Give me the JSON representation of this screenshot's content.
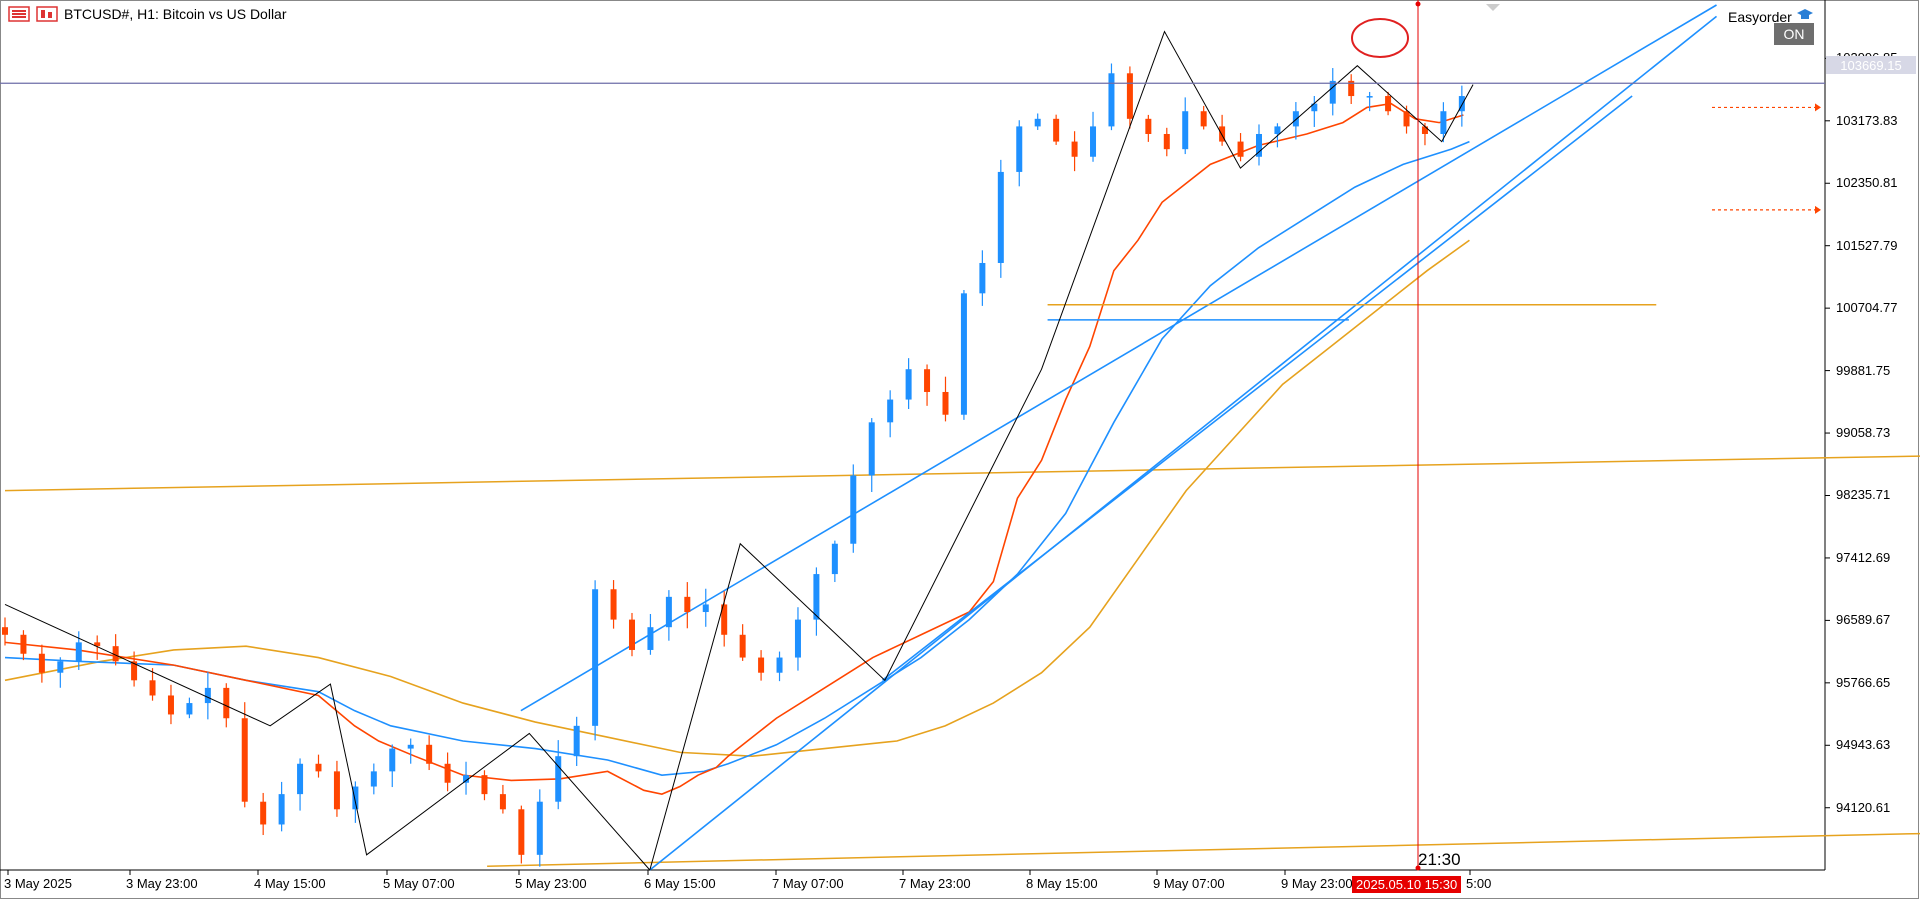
{
  "header": {
    "title": "BTCUSD#, H1:  Bitcoin vs US Dollar",
    "panel_label": "Easyorder",
    "toggle_label": "ON"
  },
  "colors": {
    "bull": "#1e90ff",
    "bear": "#ff4500",
    "ema_fast": "#ff4500",
    "ema_mid": "#1e90ff",
    "ema_slow": "#e6a21e",
    "channel": "#1e90ff",
    "zigzag": "#000000",
    "price_line": "#6e6ea8",
    "time_line": "#e60000",
    "stoploss": "#ff4500"
  },
  "chart_data": {
    "type": "candlestick",
    "symbol": "BTCUSD#",
    "timeframe": "H1",
    "title": "BTCUSD#, H1:  Bitcoin vs US Dollar",
    "current_price": 103669.15,
    "current_price_label": "103669.15",
    "ylim": [
      93300,
      104700
    ],
    "y_ticks": [
      "103996.85",
      "103173.83",
      "102350.81",
      "101527.79",
      "100704.77",
      "99881.75",
      "99058.73",
      "98235.71",
      "97412.69",
      "96589.67",
      "95766.65",
      "94943.63",
      "94120.61"
    ],
    "x_ticks": [
      "3 May 2025",
      "3 May 23:00",
      "4 May 15:00",
      "5 May 07:00",
      "5 May 23:00",
      "6 May 15:00",
      "7 May 07:00",
      "7 May 23:00",
      "8 May 15:00",
      "9 May 07:00",
      "9 May 23:00",
      "5:00"
    ],
    "crosshair_time": "2025.05.10 15:30",
    "crosshair_minute": "21:30",
    "closes_anchor": [
      96400,
      96150,
      95900,
      96050,
      96300,
      96250,
      96050,
      95800,
      95600,
      95350,
      95500,
      95700,
      95300,
      94200,
      93900,
      94300,
      94700,
      94600,
      94100,
      94400,
      94600,
      94900,
      94950,
      94700,
      94450,
      94550,
      94300,
      94100,
      93500,
      94200,
      94800,
      95200,
      97000,
      96600,
      96200,
      96500,
      96900,
      96700,
      96800,
      96400,
      96100,
      95900,
      96100,
      96600,
      97200,
      97600,
      98500,
      99200,
      99500,
      99900,
      99600,
      99300,
      100900,
      101300,
      102500,
      103100,
      103200,
      102900,
      102700,
      103100,
      103800,
      103200,
      103000,
      102800,
      103300,
      103100,
      102900,
      102700,
      103000,
      103100,
      103300,
      103400,
      103700,
      103500,
      103500,
      103300,
      103100,
      103000,
      103300,
      103500
    ],
    "ema_fast": [
      [
        0,
        96300
      ],
      [
        60,
        96200
      ],
      [
        140,
        96000
      ],
      [
        200,
        95800
      ],
      [
        260,
        95600
      ],
      [
        290,
        95200
      ],
      [
        310,
        95000
      ],
      [
        340,
        94800
      ],
      [
        380,
        94550
      ],
      [
        420,
        94480
      ],
      [
        460,
        94500
      ],
      [
        500,
        94600
      ],
      [
        530,
        94350
      ],
      [
        545,
        94300
      ],
      [
        560,
        94400
      ],
      [
        575,
        94550
      ],
      [
        590,
        94650
      ],
      [
        600,
        94800
      ],
      [
        640,
        95300
      ],
      [
        680,
        95700
      ],
      [
        720,
        96100
      ],
      [
        760,
        96400
      ],
      [
        800,
        96700
      ],
      [
        820,
        97100
      ],
      [
        840,
        98200
      ],
      [
        860,
        98700
      ],
      [
        880,
        99500
      ],
      [
        900,
        100200
      ],
      [
        920,
        101200
      ],
      [
        940,
        101600
      ],
      [
        960,
        102100
      ],
      [
        1000,
        102600
      ],
      [
        1040,
        102850
      ],
      [
        1080,
        103000
      ],
      [
        1110,
        103150
      ],
      [
        1130,
        103350
      ],
      [
        1150,
        103400
      ],
      [
        1170,
        103200
      ],
      [
        1190,
        103150
      ],
      [
        1210,
        103250
      ]
    ],
    "ema_mid": [
      [
        0,
        96100
      ],
      [
        60,
        96050
      ],
      [
        140,
        96000
      ],
      [
        200,
        95800
      ],
      [
        260,
        95650
      ],
      [
        290,
        95400
      ],
      [
        320,
        95200
      ],
      [
        380,
        95000
      ],
      [
        440,
        94900
      ],
      [
        500,
        94750
      ],
      [
        545,
        94550
      ],
      [
        580,
        94600
      ],
      [
        600,
        94700
      ],
      [
        640,
        94950
      ],
      [
        680,
        95300
      ],
      [
        720,
        95700
      ],
      [
        760,
        96100
      ],
      [
        800,
        96600
      ],
      [
        840,
        97200
      ],
      [
        880,
        98000
      ],
      [
        920,
        99200
      ],
      [
        960,
        100300
      ],
      [
        1000,
        101000
      ],
      [
        1040,
        101500
      ],
      [
        1080,
        101900
      ],
      [
        1120,
        102300
      ],
      [
        1160,
        102600
      ],
      [
        1200,
        102800
      ],
      [
        1215,
        102900
      ]
    ],
    "ema_slow": [
      [
        0,
        95800
      ],
      [
        80,
        96050
      ],
      [
        140,
        96200
      ],
      [
        200,
        96250
      ],
      [
        260,
        96100
      ],
      [
        320,
        95850
      ],
      [
        380,
        95500
      ],
      [
        440,
        95250
      ],
      [
        500,
        95050
      ],
      [
        560,
        94850
      ],
      [
        620,
        94800
      ],
      [
        680,
        94900
      ],
      [
        740,
        95000
      ],
      [
        780,
        95200
      ],
      [
        820,
        95500
      ],
      [
        860,
        95900
      ],
      [
        900,
        96500
      ],
      [
        940,
        97400
      ],
      [
        980,
        98300
      ],
      [
        1020,
        99000
      ],
      [
        1060,
        99700
      ],
      [
        1100,
        100200
      ],
      [
        1140,
        100700
      ],
      [
        1180,
        101200
      ],
      [
        1215,
        101600
      ]
    ],
    "zigzag": [
      [
        0,
        96800
      ],
      [
        220,
        95200
      ],
      [
        270,
        95750
      ],
      [
        300,
        93500
      ],
      [
        435,
        95100
      ],
      [
        535,
        93300
      ],
      [
        610,
        97600
      ],
      [
        730,
        95800
      ],
      [
        860,
        99900
      ],
      [
        962,
        104350
      ],
      [
        1025,
        102550
      ],
      [
        1122,
        103900
      ],
      [
        1192,
        102900
      ],
      [
        1218,
        103650
      ]
    ],
    "channel_upper": [
      [
        428,
        95400
      ],
      [
        1420,
        104700
      ]
    ],
    "channel_mid": [
      [
        535,
        93300
      ],
      [
        1420,
        104550
      ]
    ],
    "channel_lower": [
      [
        728,
        95800
      ],
      [
        1350,
        103500
      ]
    ],
    "levels": [
      {
        "name": "horizontal-orange",
        "x0": 865,
        "x1": 1370,
        "y": 100750
      },
      {
        "name": "horizontal-blue",
        "x0": 865,
        "x1": 1115,
        "y": 100550
      }
    ],
    "trend_orange_top": [
      [
        0,
        98300
      ],
      [
        1920,
        98850
      ]
    ],
    "trend_orange_bottom": [
      [
        400,
        93350
      ],
      [
        1920,
        93900
      ]
    ],
    "stop_levels": [
      103350,
      102000
    ]
  }
}
